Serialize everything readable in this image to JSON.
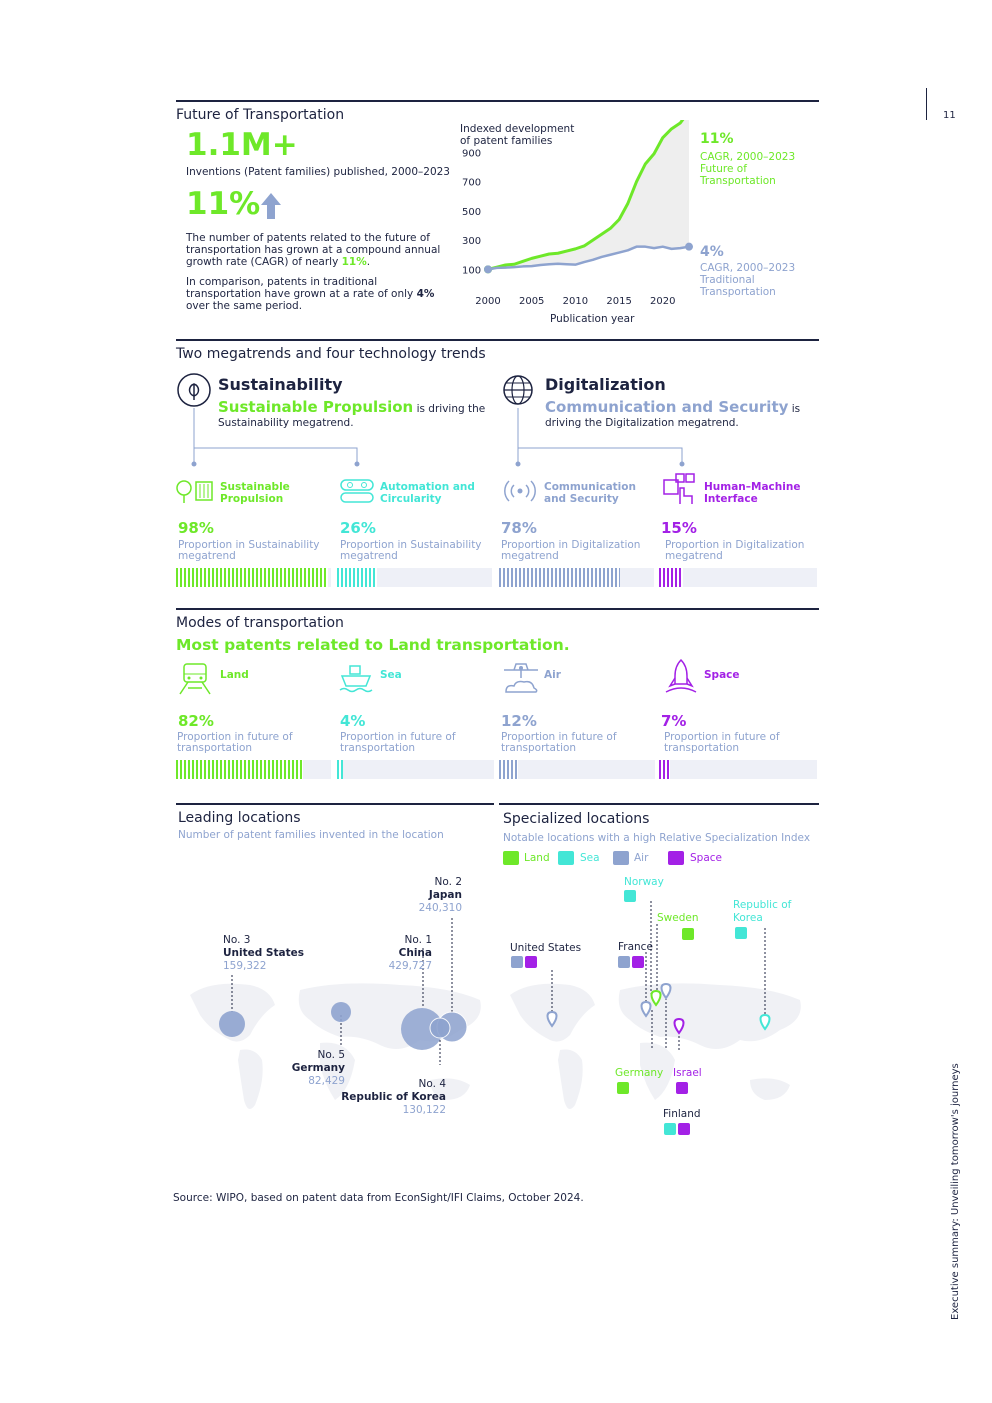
{
  "page_number": "11",
  "side_text": "Executive summary: Unveiling tomorrow's journeys",
  "future": {
    "title": "Future of Transportation",
    "big_number": "1.1M+",
    "big_number_label": "Inventions (Patent families) published, 2000–2023",
    "growth": "11%",
    "para1_a": "The number of patents related to the future of transportation has grown at a compound annual growth rate (CAGR) of nearly ",
    "para1_b": "11%",
    "para1_c": ".",
    "para2_a": "In comparison, patents in traditional transportation have grown at a rate of only ",
    "para2_b": "4%",
    "para2_c": " over the same period."
  },
  "chart_data": {
    "type": "area",
    "title": "Indexed development of patent families",
    "title_line1": "Indexed development",
    "title_line2": "of patent families",
    "xlabel": "Publication year",
    "x_ticks": [
      "2000",
      "2005",
      "2010",
      "2015",
      "2020"
    ],
    "y_ticks": [
      "100",
      "300",
      "500",
      "700",
      "900"
    ],
    "xlim": [
      2000,
      2023
    ],
    "ylim": [
      0,
      1100
    ],
    "x": [
      2000,
      2001,
      2002,
      2003,
      2004,
      2005,
      2006,
      2007,
      2008,
      2009,
      2010,
      2011,
      2012,
      2013,
      2014,
      2015,
      2016,
      2017,
      2018,
      2019,
      2020,
      2021,
      2022,
      2023
    ],
    "series": [
      {
        "name": "Future of Transportation",
        "color": "#6ee829",
        "values": [
          100,
          115,
          130,
          135,
          155,
          175,
          190,
          205,
          210,
          225,
          240,
          260,
          300,
          340,
          380,
          440,
          550,
          700,
          820,
          890,
          1000,
          1060,
          1100,
          1180
        ]
      },
      {
        "name": "Traditional Transportation",
        "color": "#8ea3cf",
        "values": [
          100,
          110,
          112,
          115,
          120,
          122,
          130,
          135,
          138,
          135,
          132,
          150,
          165,
          185,
          200,
          215,
          230,
          255,
          255,
          245,
          255,
          240,
          245,
          255
        ]
      }
    ],
    "end_labels": [
      {
        "value": "11%",
        "line1": "CAGR, 2000–2023",
        "line2": "Future of",
        "line3": "Transportation"
      },
      {
        "value": "4%",
        "line1": "CAGR, 2000–2023",
        "line2": "Traditional",
        "line3": "Transportation"
      }
    ]
  },
  "megatrends": {
    "title": "Two megatrends and four technology trends",
    "sustainability": {
      "name": "Sustainability",
      "highlight": "Sustainable Propulsion",
      "text_a": " is driving the",
      "text_b": "Sustainability megatrend."
    },
    "digitalization": {
      "name": "Digitalization",
      "highlight": "Communication and Security",
      "text_a": " is",
      "text_b": "driving the Digitalization megatrend."
    },
    "trends": [
      {
        "line1": "Sustainable",
        "line2": "Propulsion",
        "pct": "98%",
        "value": 0.98,
        "desc1": "Proportion in Sustainability",
        "desc2": "megatrend",
        "color": "#6ee829"
      },
      {
        "line1": "Automation and",
        "line2": "Circularity",
        "pct": "26%",
        "value": 0.26,
        "desc1": "Proportion in Sustainability",
        "desc2": "megatrend",
        "color": "#43e6d6"
      },
      {
        "line1": "Communication",
        "line2": "and Security",
        "pct": "78%",
        "value": 0.78,
        "desc1": "Proportion in Digitalization",
        "desc2": "megatrend",
        "color": "#8ea3cf"
      },
      {
        "line1": "Human–Machine",
        "line2": "Interface",
        "pct": "15%",
        "value": 0.15,
        "desc1": "Proportion in Digitalization",
        "desc2": "megatrend",
        "color": "#a321e6"
      }
    ]
  },
  "modes": {
    "title": "Modes of transportation",
    "headline": "Most patents related to Land transportation.",
    "items": [
      {
        "name": "Land",
        "pct": "82%",
        "value": 0.82,
        "desc1": "Proportion in future of",
        "desc2": "transportation",
        "color": "#6ee829"
      },
      {
        "name": "Sea",
        "pct": "4%",
        "value": 0.04,
        "desc1": "Proportion in future of",
        "desc2": "transportation",
        "color": "#43e6d6"
      },
      {
        "name": "Air",
        "pct": "12%",
        "value": 0.12,
        "desc1": "Proportion in future of",
        "desc2": "transportation",
        "color": "#8ea3cf"
      },
      {
        "name": "Space",
        "pct": "7%",
        "value": 0.07,
        "desc1": "Proportion in future of",
        "desc2": "transportation",
        "color": "#a321e6"
      }
    ]
  },
  "leading": {
    "title": "Leading locations",
    "subtitle": "Number of patent families invented in the location",
    "locations": [
      {
        "rank": "No. 1",
        "name": "China",
        "value": "429,727"
      },
      {
        "rank": "No. 2",
        "name": "Japan",
        "value": "240,310"
      },
      {
        "rank": "No. 3",
        "name": "United States",
        "value": "159,322"
      },
      {
        "rank": "No. 4",
        "name": "Republic of Korea",
        "value": "130,122"
      },
      {
        "rank": "No. 5",
        "name": "Germany",
        "value": "82,429"
      }
    ]
  },
  "specialized": {
    "title": "Specialized locations",
    "subtitle": "Notable locations with a high Relative Specialization Index",
    "legend": [
      {
        "name": "Land",
        "color": "#6ee829"
      },
      {
        "name": "Sea",
        "color": "#43e6d6"
      },
      {
        "name": "Air",
        "color": "#8ea3cf"
      },
      {
        "name": "Space",
        "color": "#a321e6"
      }
    ],
    "locations": {
      "norway": "Norway",
      "sweden": "Sweden",
      "korea1": "Republic of",
      "korea2": "Korea",
      "us": "United States",
      "france": "France",
      "germany": "Germany",
      "israel": "Israel",
      "finland": "Finland"
    }
  },
  "source": "Source: WIPO, based on patent data from EconSight/IFI Claims, October 2024."
}
